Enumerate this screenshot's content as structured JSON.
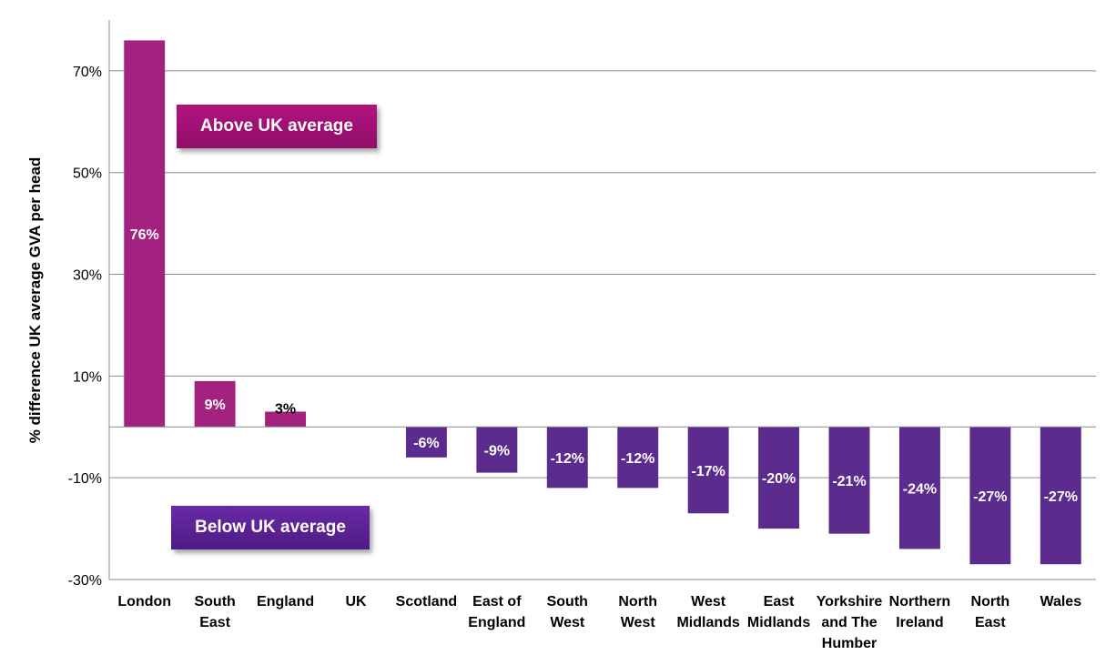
{
  "chart_data": {
    "type": "bar",
    "ylabel": "% difference UK average GVA per head",
    "xlabel": "",
    "ylim": [
      -30,
      80
    ],
    "yticks": [
      -30,
      -10,
      10,
      30,
      50,
      70
    ],
    "ytick_labels": [
      "-30%",
      "-10%",
      "10%",
      "30%",
      "50%",
      "70%"
    ],
    "grid": true,
    "categories": [
      "London",
      "South East",
      "England",
      "UK",
      "Scotland",
      "East of England",
      "South West",
      "North West",
      "West Midlands",
      "East Midlands",
      "Yorkshire and The Humber",
      "Northern Ireland",
      "North East",
      "Wales"
    ],
    "category_lines": [
      [
        "London"
      ],
      [
        "South",
        "East"
      ],
      [
        "England"
      ],
      [
        "UK"
      ],
      [
        "Scotland"
      ],
      [
        "East of",
        "England"
      ],
      [
        "South",
        "West"
      ],
      [
        "North",
        "West"
      ],
      [
        "West",
        "Midlands"
      ],
      [
        "East",
        "Midlands"
      ],
      [
        "Yorkshire",
        "and The",
        "Humber"
      ],
      [
        "Northern",
        "Ireland"
      ],
      [
        "North",
        "East"
      ],
      [
        "Wales"
      ]
    ],
    "values": [
      76,
      9,
      3,
      0,
      -6,
      -9,
      -12,
      -12,
      -17,
      -20,
      -21,
      -24,
      -27,
      -27
    ],
    "data_labels": [
      "76%",
      "9%",
      "3%",
      "",
      "-6%",
      "-9%",
      "-12%",
      "-12%",
      "-17%",
      "-20%",
      "-21%",
      "-24%",
      "-27%",
      "-27%"
    ],
    "colors": {
      "positive": "#a3217f",
      "negative": "#5b2b8e"
    }
  },
  "annotations": {
    "above_label": "Above UK average",
    "below_label": "Below UK average"
  }
}
